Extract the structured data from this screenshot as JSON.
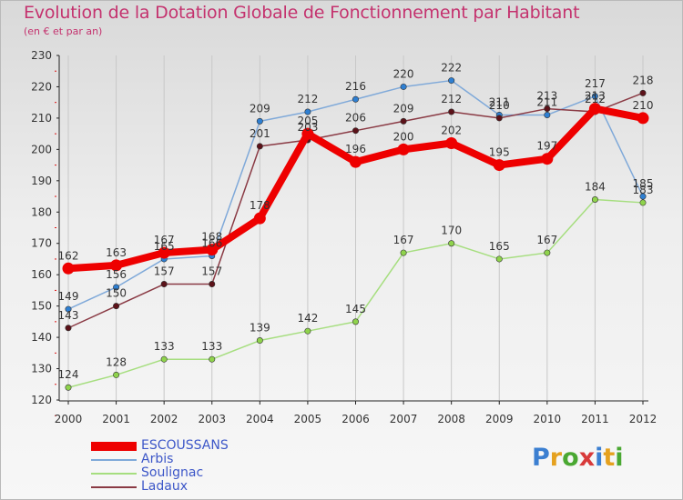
{
  "header": {
    "title": "Evolution de la Dotation Globale de Fonctionnement par Habitant",
    "subtitle": "(en € et par an)"
  },
  "logo": {
    "text": "Proxiti",
    "colors": [
      "#3b7fd1",
      "#e5a11f",
      "#4aa832",
      "#d83a3a",
      "#3b7fd1",
      "#e5a11f",
      "#4aa832"
    ]
  },
  "chart_data": {
    "type": "line",
    "title": "Evolution de la Dotation Globale de Fonctionnement par Habitant",
    "ylabel": "(en € et par an)",
    "xlabel": "",
    "x": [
      "2000",
      "2001",
      "2002",
      "2003",
      "2004",
      "2005",
      "2006",
      "2007",
      "2008",
      "2009",
      "2010",
      "2011",
      "2012"
    ],
    "ylim": [
      120,
      230
    ],
    "yticks": [
      120,
      130,
      140,
      150,
      160,
      170,
      180,
      190,
      200,
      210,
      220,
      230
    ],
    "grid": "vertical",
    "legend": "bottom-left",
    "series": [
      {
        "name": "ESCOUSSANS",
        "color": "#ee0000",
        "marker": "#ee0000",
        "highlight": true,
        "values": [
          162,
          163,
          167,
          168,
          178,
          205,
          196,
          200,
          202,
          195,
          197,
          213,
          210
        ],
        "labels": [
          "162",
          "163",
          "167",
          "168",
          "178",
          "205",
          "196",
          "200",
          "202",
          "195",
          "197",
          "213",
          "210"
        ]
      },
      {
        "name": "Arbis",
        "color": "#7fa9d9",
        "marker": "#2e7fd2",
        "highlight": false,
        "values": [
          149,
          156,
          165,
          166,
          209,
          212,
          216,
          220,
          222,
          211,
          211,
          217,
          185
        ],
        "labels": [
          "149",
          "156",
          "165",
          "166",
          "209",
          "212",
          "216",
          "220",
          "222",
          "211",
          "211",
          "217",
          "185"
        ]
      },
      {
        "name": "Soulignac",
        "color": "#a6de7f",
        "marker": "#8fd34c",
        "highlight": false,
        "values": [
          124,
          128,
          133,
          133,
          139,
          142,
          145,
          167,
          170,
          165,
          167,
          184,
          183
        ],
        "labels": [
          "124",
          "128",
          "133",
          "133",
          "139",
          "142",
          "145",
          "167",
          "170",
          "165",
          "167",
          "184",
          "183"
        ]
      },
      {
        "name": "Ladaux",
        "color": "#8a3a44",
        "marker": "#5c1219",
        "highlight": false,
        "values": [
          143,
          150,
          157,
          157,
          201,
          203,
          206,
          209,
          212,
          210,
          213,
          212,
          218
        ],
        "labels": [
          "143",
          "150",
          "157",
          "157",
          "201",
          "203",
          "206",
          "209",
          "212",
          "210",
          "213",
          "212",
          "218"
        ]
      }
    ]
  }
}
